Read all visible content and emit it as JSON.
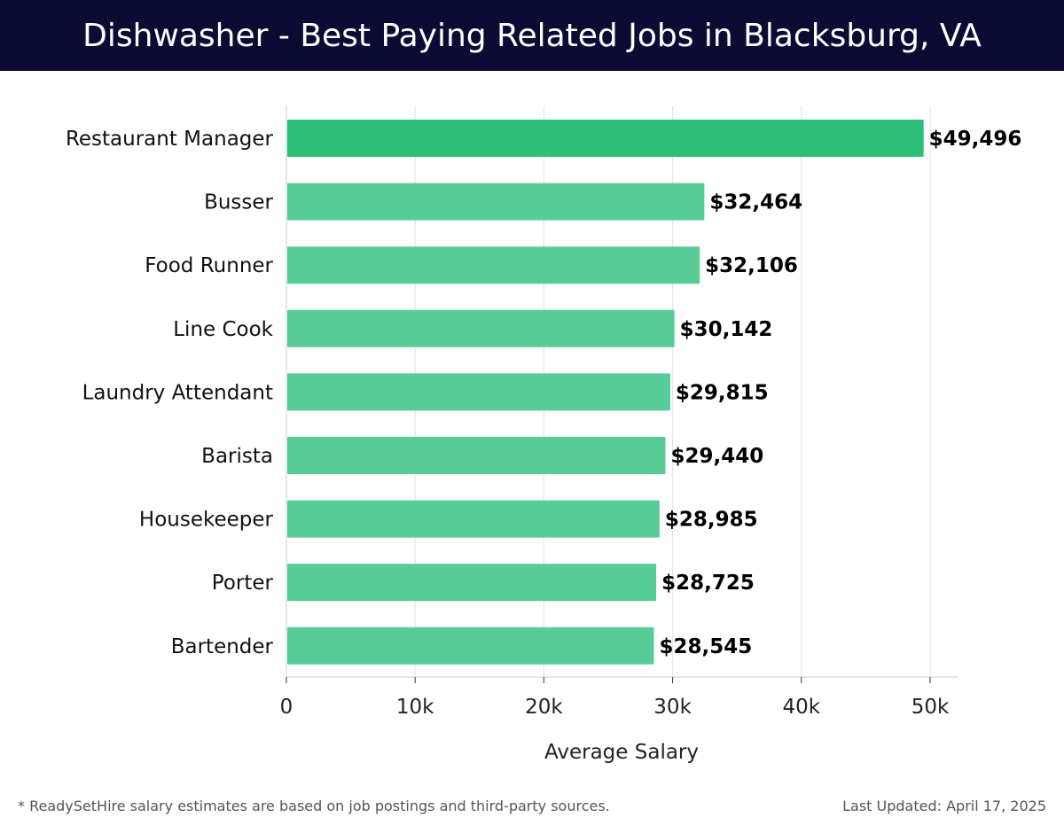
{
  "header": {
    "title": "Dishwasher - Best Paying Related Jobs in Blacksburg, VA"
  },
  "chart_data": {
    "type": "bar",
    "orientation": "horizontal",
    "title": "Dishwasher - Best Paying Related Jobs in Blacksburg, VA",
    "xlabel": "Average Salary",
    "ylabel": "",
    "categories": [
      "Restaurant Manager",
      "Busser",
      "Food Runner",
      "Line Cook",
      "Laundry Attendant",
      "Barista",
      "Housekeeper",
      "Porter",
      "Bartender"
    ],
    "values": [
      49496,
      32464,
      32106,
      30142,
      29815,
      29440,
      28985,
      28725,
      28545
    ],
    "value_labels": [
      "$49,496",
      "$32,464",
      "$32,106",
      "$30,142",
      "$29,815",
      "$29,440",
      "$28,985",
      "$28,725",
      "$28,545"
    ],
    "xlim": [
      0,
      52000
    ],
    "x_ticks": [
      0,
      10000,
      20000,
      30000,
      40000,
      50000
    ],
    "x_tick_labels": [
      "0",
      "10k",
      "20k",
      "30k",
      "40k",
      "50k"
    ],
    "grid": true,
    "colors": {
      "highlight": "#2bbf78",
      "bar": "#58cc96",
      "grid": "#e2e2e2",
      "axis": "#cccccc",
      "header_bg": "#0b0b33"
    }
  },
  "footer": {
    "note": "* ReadySetHire salary estimates are based on job postings and third-party sources.",
    "updated": "Last Updated: April 17, 2025"
  }
}
